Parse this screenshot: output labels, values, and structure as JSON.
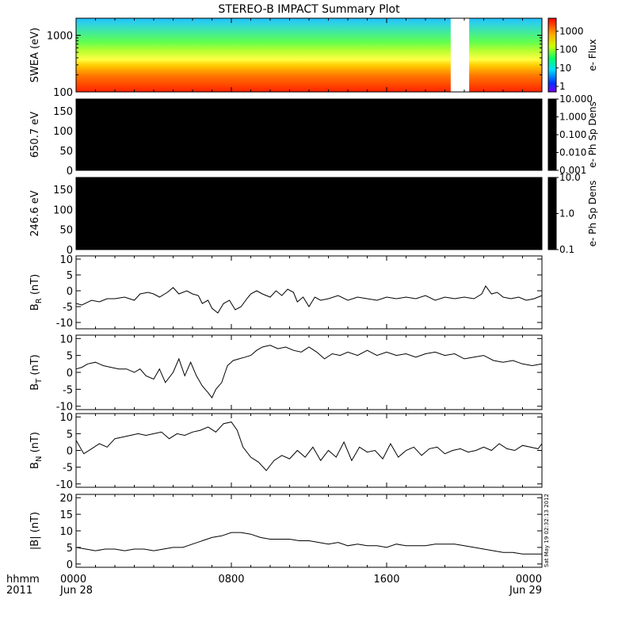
{
  "title": "STEREO-B IMPACT Summary Plot",
  "timestamp": "Sat May 19 02:32:13 2012",
  "chart_data": {
    "type": "line",
    "title": "STEREO-B IMPACT Summary Plot",
    "x_axis": {
      "range_hours": [
        0,
        24
      ],
      "tick_hours": [
        0,
        8,
        16,
        24
      ],
      "tick_labels": [
        "0000",
        "0800",
        "1600",
        "0000"
      ],
      "date_labels": [
        "Jun 28",
        "",
        "",
        "Jun 29"
      ],
      "left_title_top": "hhmm",
      "left_title_bottom": "2011"
    },
    "panels": [
      {
        "id": "swea",
        "kind": "spectrogram",
        "ylabel": "SWEA (eV)",
        "yscale": "log",
        "ylim": [
          100,
          2000
        ],
        "yticks": [
          100,
          1000
        ],
        "ytick_labels": [
          "100",
          "1000"
        ],
        "data_gap_hours": [
          19.3,
          20.25
        ],
        "colorbar": {
          "label": "e- Flux",
          "scale": "log",
          "range": [
            0.5,
            5000
          ],
          "ticks": [
            1,
            10,
            100,
            1000
          ],
          "tick_labels": [
            "1",
            "10",
            "100",
            "1000"
          ]
        }
      },
      {
        "id": "pad650",
        "kind": "spectrogram",
        "ylabel": "650.7 eV",
        "ylim": [
          0,
          180
        ],
        "yticks": [
          0,
          50,
          100,
          150
        ],
        "ytick_labels": [
          "0",
          "50",
          "100",
          "150"
        ],
        "fill": "#000000",
        "colorbar": {
          "label": "e- Ph Sp Dens",
          "scale": "log",
          "range": [
            0.001,
            10
          ],
          "ticks": [
            0.001,
            0.01,
            0.1,
            1,
            10
          ],
          "tick_labels": [
            "0.001",
            "0.010",
            "0.100",
            "1.000",
            "10.000"
          ]
        }
      },
      {
        "id": "pad246",
        "kind": "spectrogram",
        "ylabel": "246.6 eV",
        "ylim": [
          0,
          180
        ],
        "yticks": [
          0,
          50,
          100,
          150
        ],
        "ytick_labels": [
          "0",
          "50",
          "100",
          "150"
        ],
        "fill": "#000000",
        "colorbar": {
          "label": "e- Ph Sp Dens",
          "scale": "log",
          "range": [
            0.1,
            10
          ],
          "ticks": [
            0.1,
            1,
            10
          ],
          "tick_labels": [
            "0.1",
            "1.0",
            "10.0"
          ]
        }
      },
      {
        "id": "br",
        "kind": "line",
        "ylabel_main": "B",
        "ylabel_sub": "R",
        "ylabel_unit": " (nT)",
        "ylim": [
          -12,
          11
        ],
        "yticks": [
          -10,
          -5,
          0,
          5,
          10
        ],
        "ytick_labels": [
          "-10",
          "-5",
          "0",
          "5",
          "10"
        ],
        "x": [
          0,
          0.3,
          0.8,
          1.2,
          1.6,
          2.0,
          2.5,
          3.0,
          3.3,
          3.7,
          4.0,
          4.3,
          4.7,
          5.0,
          5.3,
          5.7,
          6.0,
          6.3,
          6.5,
          6.8,
          7.0,
          7.3,
          7.6,
          7.9,
          8.2,
          8.5,
          8.8,
          9.0,
          9.3,
          9.6,
          10.0,
          10.3,
          10.6,
          10.9,
          11.2,
          11.4,
          11.7,
          12.0,
          12.3,
          12.6,
          13.0,
          13.5,
          14.0,
          14.5,
          15.0,
          15.5,
          16.0,
          16.5,
          17.0,
          17.5,
          18.0,
          18.5,
          19.0,
          19.5,
          20.0,
          20.5,
          20.9,
          21.1,
          21.4,
          21.7,
          22.0,
          22.4,
          22.8,
          23.2,
          23.6,
          24.0
        ],
        "y": [
          -4,
          -4.5,
          -3,
          -3.5,
          -2.5,
          -2.5,
          -2,
          -3,
          -1,
          -0.5,
          -1,
          -2,
          -0.5,
          1,
          -1,
          0,
          -1,
          -1.5,
          -4,
          -3,
          -5.5,
          -7,
          -4,
          -3,
          -6,
          -5,
          -2.5,
          -1,
          0,
          -1,
          -2,
          0,
          -1.5,
          0.5,
          -0.5,
          -3.5,
          -2,
          -5,
          -2,
          -3,
          -2.5,
          -1.5,
          -3,
          -2,
          -2.5,
          -3,
          -2,
          -2.5,
          -2,
          -2.5,
          -1.5,
          -3,
          -2,
          -2.5,
          -2,
          -2.5,
          -1,
          1.5,
          -1,
          -0.5,
          -2,
          -2.5,
          -2,
          -3,
          -2.5,
          -1.5
        ]
      },
      {
        "id": "bt",
        "kind": "line",
        "ylabel_main": "B",
        "ylabel_sub": "T",
        "ylabel_unit": " (nT)",
        "ylim": [
          -11,
          11
        ],
        "yticks": [
          -10,
          -5,
          0,
          5,
          10
        ],
        "ytick_labels": [
          "-10",
          "-5",
          "0",
          "5",
          "10"
        ],
        "x": [
          0,
          0.3,
          0.6,
          1.0,
          1.4,
          1.8,
          2.2,
          2.6,
          3.0,
          3.3,
          3.6,
          4.0,
          4.3,
          4.6,
          5.0,
          5.3,
          5.6,
          5.9,
          6.2,
          6.5,
          6.8,
          7.0,
          7.2,
          7.5,
          7.8,
          8.1,
          8.4,
          8.7,
          9.0,
          9.3,
          9.6,
          10.0,
          10.4,
          10.8,
          11.2,
          11.6,
          12.0,
          12.4,
          12.8,
          13.2,
          13.6,
          14.0,
          14.5,
          15.0,
          15.5,
          16.0,
          16.5,
          17.0,
          17.5,
          18.0,
          18.5,
          19.0,
          19.5,
          20.0,
          20.5,
          21.0,
          21.5,
          22.0,
          22.5,
          23.0,
          23.5,
          24.0
        ],
        "y": [
          1,
          1.5,
          2.5,
          3,
          2,
          1.5,
          1,
          1,
          0,
          1,
          -1,
          -2,
          1,
          -3,
          0,
          4,
          -1,
          3,
          -1,
          -4,
          -6,
          -7.5,
          -5,
          -3,
          2,
          3.5,
          4,
          4.5,
          5,
          6.5,
          7.5,
          8,
          7,
          7.5,
          6.5,
          6,
          7.5,
          6,
          4,
          5.5,
          5,
          6,
          5,
          6.5,
          5,
          6,
          5,
          5.5,
          4.5,
          5.5,
          6,
          5,
          5.5,
          4,
          4.5,
          5,
          3.5,
          3,
          3.5,
          2.5,
          2,
          2.5
        ]
      },
      {
        "id": "bn",
        "kind": "line",
        "ylabel_main": "B",
        "ylabel_sub": "N",
        "ylabel_unit": " (nT)",
        "ylim": [
          -11,
          11
        ],
        "yticks": [
          -10,
          -5,
          0,
          5,
          10
        ],
        "ytick_labels": [
          "-10",
          "-5",
          "0",
          "5",
          "10"
        ],
        "x": [
          0,
          0.4,
          0.8,
          1.2,
          1.6,
          2.0,
          2.4,
          2.8,
          3.2,
          3.6,
          4.0,
          4.4,
          4.8,
          5.2,
          5.6,
          6.0,
          6.4,
          6.8,
          7.2,
          7.6,
          8.0,
          8.3,
          8.6,
          9.0,
          9.4,
          9.8,
          10.2,
          10.6,
          11.0,
          11.4,
          11.8,
          12.2,
          12.6,
          13.0,
          13.4,
          13.8,
          14.2,
          14.6,
          15.0,
          15.4,
          15.8,
          16.2,
          16.6,
          17.0,
          17.4,
          17.8,
          18.2,
          18.6,
          19.0,
          19.4,
          19.8,
          20.2,
          20.6,
          21.0,
          21.4,
          21.8,
          22.2,
          22.6,
          23.0,
          23.4,
          23.8,
          24.0
        ],
        "y": [
          3,
          -1,
          0.5,
          2,
          1,
          3.5,
          4,
          4.5,
          5,
          4.5,
          5,
          5.5,
          3.5,
          5,
          4.5,
          5.5,
          6,
          7,
          5.5,
          8,
          8.5,
          6,
          1,
          -2,
          -3.5,
          -6,
          -3,
          -1.5,
          -2.5,
          0,
          -2,
          1,
          -3,
          0,
          -2,
          2.5,
          -3,
          1,
          -0.5,
          0,
          -2.5,
          2,
          -2,
          0,
          1,
          -1.5,
          0.5,
          1,
          -1,
          0,
          0.5,
          -0.5,
          0,
          1,
          0,
          2,
          0.5,
          0,
          1.5,
          1,
          0.5,
          2
        ]
      },
      {
        "id": "bmag",
        "kind": "line",
        "ylabel_main": "|B|",
        "ylabel_sub": "",
        "ylabel_unit": " (nT)",
        "ylim": [
          -1,
          21
        ],
        "yticks": [
          0,
          5,
          10,
          15,
          20
        ],
        "ytick_labels": [
          "0",
          "5",
          "10",
          "15",
          "20"
        ],
        "x": [
          0,
          0.5,
          1.0,
          1.5,
          2.0,
          2.5,
          3.0,
          3.5,
          4.0,
          4.5,
          5.0,
          5.5,
          6.0,
          6.5,
          7.0,
          7.5,
          8.0,
          8.5,
          9.0,
          9.5,
          10.0,
          10.5,
          11.0,
          11.5,
          12.0,
          12.5,
          13.0,
          13.5,
          14.0,
          14.5,
          15.0,
          15.5,
          16.0,
          16.5,
          17.0,
          17.5,
          18.0,
          18.5,
          19.0,
          19.5,
          20.0,
          20.5,
          21.0,
          21.5,
          22.0,
          22.5,
          23.0,
          23.5,
          24.0
        ],
        "y": [
          5,
          4.5,
          4,
          4.5,
          4.5,
          4,
          4.5,
          4.5,
          4,
          4.5,
          5,
          5,
          6,
          7,
          8,
          8.5,
          9.5,
          9.5,
          9,
          8,
          7.5,
          7.5,
          7.5,
          7,
          7,
          6.5,
          6,
          6.5,
          5.5,
          6,
          5.5,
          5.5,
          5,
          6,
          5.5,
          5.5,
          5.5,
          6,
          6,
          6,
          5.5,
          5,
          4.5,
          4,
          3.5,
          3.5,
          3,
          3,
          3
        ]
      }
    ]
  }
}
